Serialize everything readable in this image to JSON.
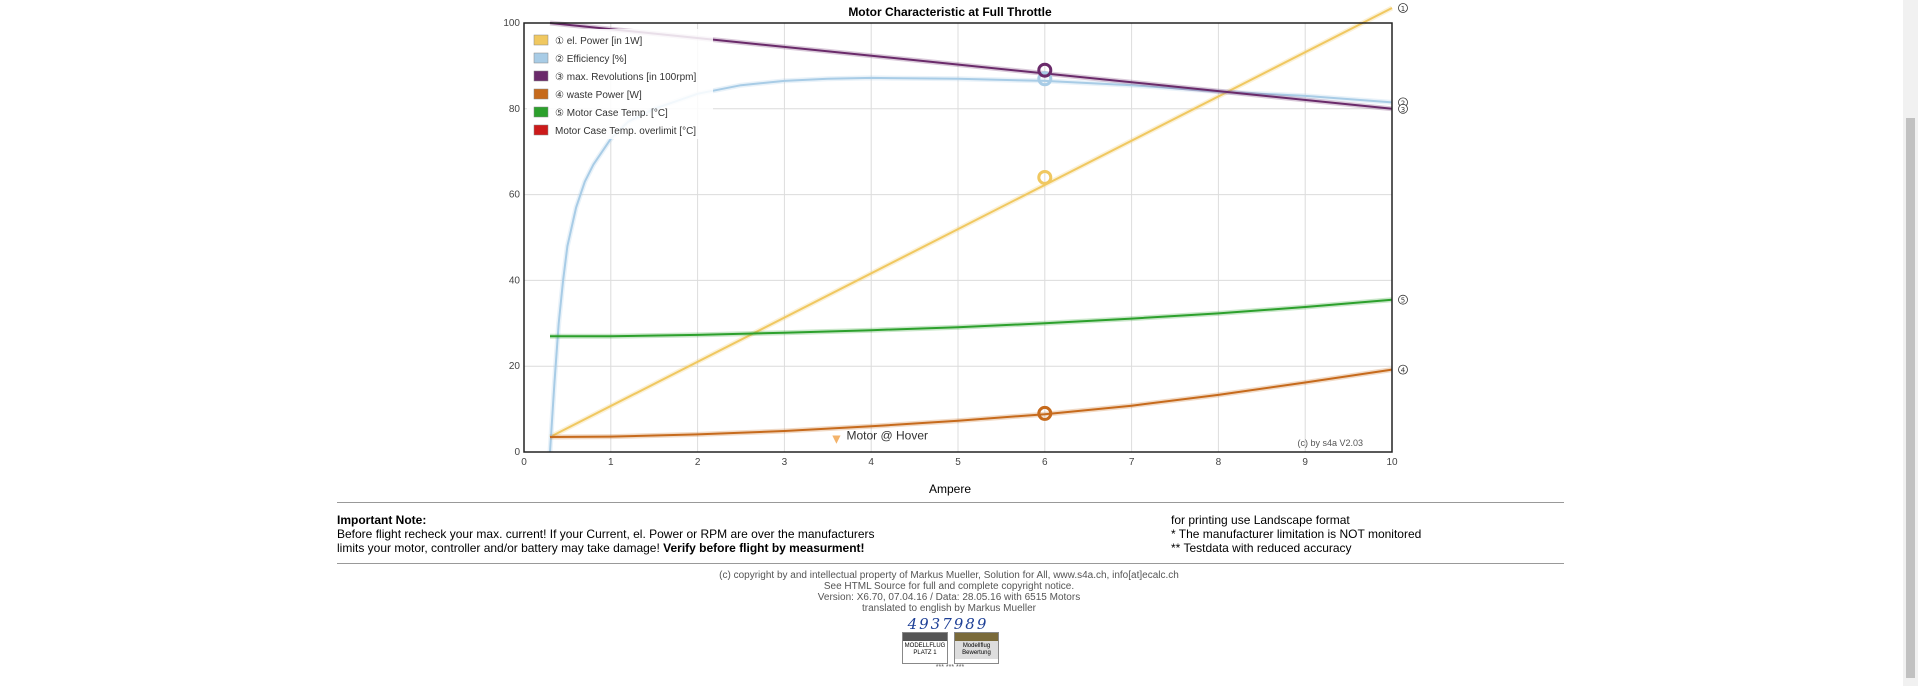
{
  "chart_data": {
    "type": "line",
    "title": "Motor Characteristic at Full Throttle",
    "xlabel": "Ampere",
    "ylabel": "",
    "xlim": [
      0,
      10
    ],
    "ylim": [
      0,
      100
    ],
    "x_ticks": [
      0,
      1,
      2,
      3,
      4,
      5,
      6,
      7,
      8,
      9,
      10
    ],
    "y_ticks": [
      0,
      20,
      40,
      60,
      80,
      100
    ],
    "grid": true,
    "legend_position": "top-left",
    "series": [
      {
        "name": "① el. Power [in 1W]",
        "color": "#f0c860",
        "end_marker": "①",
        "x": [
          0.3,
          10
        ],
        "values": [
          3.5,
          103.5
        ],
        "marker": {
          "x": 6,
          "y": 64
        }
      },
      {
        "name": "② Efficiency [%]",
        "color": "#a8cce6",
        "end_marker": "②",
        "x": [
          0.3,
          0.35,
          0.4,
          0.45,
          0.5,
          0.6,
          0.7,
          0.8,
          0.9,
          1.0,
          1.2,
          1.5,
          2.0,
          2.5,
          3.0,
          3.5,
          4.0,
          5.0,
          6.0,
          7.0,
          8.0,
          9.0,
          10.0
        ],
        "values": [
          0,
          16,
          30,
          40,
          48,
          57,
          63,
          67,
          70,
          73,
          77,
          80,
          83.5,
          85.5,
          86.5,
          87,
          87.2,
          87,
          86.5,
          85.5,
          84,
          83,
          81.5
        ],
        "marker": {
          "x": 6,
          "y": 87
        }
      },
      {
        "name": "③ max. Revolutions [in 100rpm]",
        "color": "#6a2a6a",
        "end_marker": "③",
        "x": [
          0.3,
          10
        ],
        "values": [
          100,
          80
        ],
        "marker": {
          "x": 6,
          "y": 89
        }
      },
      {
        "name": "④ waste Power [W]",
        "color": "#c66a1c",
        "end_marker": "④",
        "x": [
          0.3,
          1,
          2,
          3,
          4,
          5,
          6,
          7,
          8,
          9,
          10
        ],
        "values": [
          3.5,
          3.6,
          4.1,
          4.9,
          6.0,
          7.3,
          8.8,
          10.8,
          13.3,
          16.2,
          19.2
        ],
        "marker": {
          "x": 6,
          "y": 9
        }
      },
      {
        "name": "⑤ Motor Case Temp. [°C]",
        "color": "#2ca02c",
        "end_marker": "⑤",
        "x": [
          0.3,
          1,
          2,
          3,
          4,
          5,
          6,
          7,
          8,
          9,
          10
        ],
        "values": [
          27,
          27,
          27.3,
          27.8,
          28.4,
          29.1,
          30,
          31.1,
          32.3,
          33.8,
          35.5
        ]
      },
      {
        "name": "Motor Case Temp. overlimit [°C]",
        "color": "#cc1a1a",
        "x": [],
        "values": []
      }
    ],
    "annotations": [
      {
        "text": "Motor @ Hover",
        "x": 3.6,
        "y": 2.5,
        "marker": "▼",
        "marker_color": "#f3b36b"
      },
      {
        "text": "(c) by s4a  V2.03",
        "position": "bottom-right"
      }
    ]
  },
  "notes": {
    "heading": "Important Note:",
    "line1": "Before flight recheck your max. current! If your Current, el. Power or RPM are over the manufacturers",
    "line2_normal": "limits your motor, controller and/or battery may take damage!",
    "line2_bold": "Verify before flight by measurment!",
    "right1": "for printing use Landscape format",
    "right2": "* The manufacturer limitation is NOT monitored",
    "right3": "** Testdata with reduced accuracy"
  },
  "footer": {
    "line1": "(c) copyright by and intellectual property of Markus Mueller, Solution for All, www.s4a.ch, info[at]ecalc.ch",
    "line2": "See HTML Source for full and complete copyright notice.",
    "line3": "Version: X6.70, 07.04.16 / Data: 28.05.16 with 6515 Motors",
    "line4": "translated to english by Markus Mueller",
    "counter": "4937989",
    "badge1_text": "MODELLFLUG PLATZ 1",
    "badge2_text": "Modellflug Bewertung",
    "stars": "*** *** ***"
  }
}
